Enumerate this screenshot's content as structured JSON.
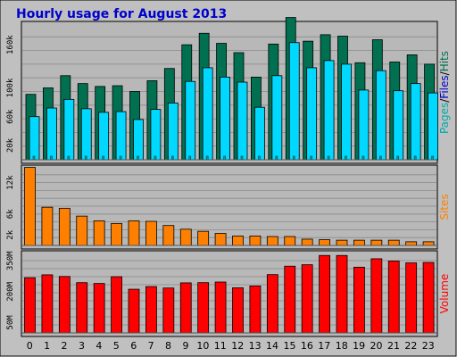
{
  "colors": {
    "background": "#ffffff",
    "panel_background": "#c0c0c0",
    "plot_background": "#b8b8b8",
    "gridline": "#8a8a8a",
    "border": "#000000",
    "title": "#0000cc",
    "hits": "#007050",
    "files": "#00d8ff",
    "pages": "#00a0a0",
    "sites": "#ff8000",
    "volume": "#ff0000",
    "label_hits": "#007050",
    "label_files": "#0000cc",
    "label_pages": "#00aaaa"
  },
  "chart_data": {
    "type": "bar",
    "title": "Hourly usage for August 2013",
    "categories": [
      "0",
      "1",
      "2",
      "3",
      "4",
      "5",
      "6",
      "7",
      "8",
      "9",
      "10",
      "11",
      "12",
      "13",
      "14",
      "15",
      "16",
      "17",
      "18",
      "19",
      "20",
      "21",
      "22",
      "23"
    ],
    "panels": [
      {
        "id": "top",
        "ylabel_parts": [
          "Pages",
          "/",
          "Files",
          "/",
          "Hits"
        ],
        "ylim": [
          0,
          190000
        ],
        "ticks": [
          {
            "value": 20000,
            "label": "20k"
          },
          {
            "value": 60000,
            "label": "60k"
          },
          {
            "value": 100000,
            "label": "100k"
          },
          {
            "value": 160000,
            "label": "160k"
          }
        ],
        "series": [
          {
            "name": "Hits",
            "values": [
              91000,
              100000,
              117000,
              106000,
              102000,
              103000,
              95000,
              110000,
              127000,
              160000,
              176000,
              162000,
              149000,
              115000,
              161000,
              198000,
              165000,
              174000,
              172000,
              135000,
              167000,
              136000,
              146000,
              133000
            ]
          },
          {
            "name": "Files",
            "values": [
              60000,
              72000,
              84000,
              71000,
              66000,
              67000,
              56000,
              70000,
              79000,
              109000,
              128000,
              115000,
              108000,
              73000,
              117000,
              163000,
              128000,
              138000,
              133000,
              97000,
              124000,
              96000,
              106000,
              93000
            ]
          },
          {
            "name": "Pages",
            "values": [
              5000,
              5000,
              5000,
              5000,
              5000,
              5000,
              5000,
              5000,
              5000,
              5000,
              5000,
              5000,
              5000,
              5000,
              5000,
              5000,
              5000,
              5000,
              5000,
              5000,
              5000,
              5000,
              5000,
              5000
            ]
          }
        ]
      },
      {
        "id": "middle",
        "ylabel_parts": [
          "Sites"
        ],
        "ylim": [
          0,
          15000
        ],
        "ticks": [
          {
            "value": 2000,
            "label": "2k"
          },
          {
            "value": 6000,
            "label": "6k"
          },
          {
            "value": 12000,
            "label": "12k"
          }
        ],
        "series": [
          {
            "name": "Sites",
            "values": [
              14900,
              7300,
              7100,
              5600,
              4700,
              4200,
              4700,
              4600,
              3800,
              3100,
              2700,
              2300,
              1800,
              1800,
              1700,
              1700,
              1200,
              1100,
              1000,
              1000,
              1000,
              1000,
              700,
              700
            ]
          }
        ]
      },
      {
        "id": "bottom",
        "ylabel_parts": [
          "Volume"
        ],
        "ylim": [
          0,
          390
        ],
        "ticks": [
          {
            "value": 50,
            "label": "50M"
          },
          {
            "value": 200,
            "label": "200M"
          },
          {
            "value": 350,
            "label": "350M"
          }
        ],
        "series": [
          {
            "name": "Volume",
            "values": [
              268,
              282,
              274,
              244,
              240,
              273,
              212,
              225,
              218,
              243,
              244,
              247,
              219,
              228,
              283,
              324,
              331,
              376,
              376,
              319,
              360,
              349,
              340,
              342
            ]
          }
        ]
      }
    ]
  }
}
